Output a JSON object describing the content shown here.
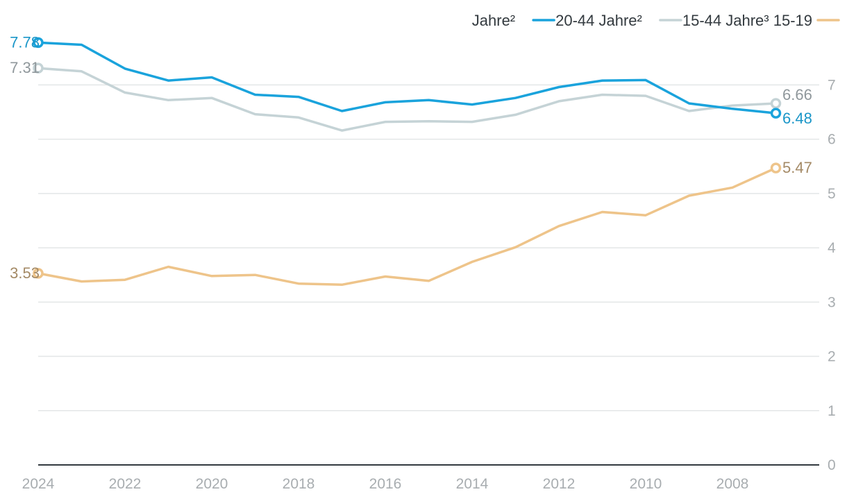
{
  "chart_data": {
    "type": "line",
    "x": [
      2024,
      2023,
      2022,
      2021,
      2020,
      2019,
      2018,
      2017,
      2016,
      2015,
      2014,
      2013,
      2012,
      2011,
      2010,
      2009,
      2008,
      2007
    ],
    "xticks": [
      2024,
      2022,
      2020,
      2018,
      2016,
      2014,
      2012,
      2010,
      2008
    ],
    "xlim": [
      2024,
      2006
    ],
    "ylim": [
      0,
      7.9
    ],
    "yticks": [
      0,
      1,
      2,
      3,
      4,
      5,
      6,
      7
    ],
    "grid": true,
    "legend_position": "top-right",
    "series": [
      {
        "name": "20-44 Jahre²",
        "color": "#1aa3dc",
        "values": [
          7.78,
          7.74,
          7.3,
          7.08,
          7.14,
          6.82,
          6.78,
          6.52,
          6.68,
          6.72,
          6.64,
          6.76,
          6.96,
          7.08,
          7.09,
          6.66,
          6.56,
          6.48
        ],
        "start_label": "7.78",
        "end_label": "6.48"
      },
      {
        "name": "15-44 Jahre³",
        "color": "#c5d3d6",
        "values": [
          7.31,
          7.25,
          6.86,
          6.72,
          6.76,
          6.46,
          6.4,
          6.16,
          6.32,
          6.33,
          6.32,
          6.45,
          6.7,
          6.82,
          6.8,
          6.52,
          6.62,
          6.66
        ],
        "start_label": "7.31",
        "end_label": "6.66"
      },
      {
        "name": "15-19 Jahre²",
        "color": "#eec48a",
        "values": [
          3.53,
          3.38,
          3.41,
          3.65,
          3.48,
          3.5,
          3.34,
          3.32,
          3.47,
          3.39,
          3.74,
          4.01,
          4.4,
          4.66,
          4.6,
          4.96,
          5.11,
          5.47
        ],
        "start_label": "3.53",
        "end_label": "5.47"
      }
    ],
    "legend": {
      "items": [
        {
          "text": "Jahre²",
          "color": ""
        },
        {
          "text": "20-44 Jahre²",
          "color": "#1aa3dc"
        },
        {
          "text": "15-44 Jahre³ 15-19",
          "color": "#c5d3d6"
        },
        {
          "text": "",
          "color": "#eec48a"
        }
      ]
    },
    "label_colors": {
      "blue": "#1a96c8",
      "grey": "#8f979b",
      "gold": "#a48a66"
    }
  }
}
